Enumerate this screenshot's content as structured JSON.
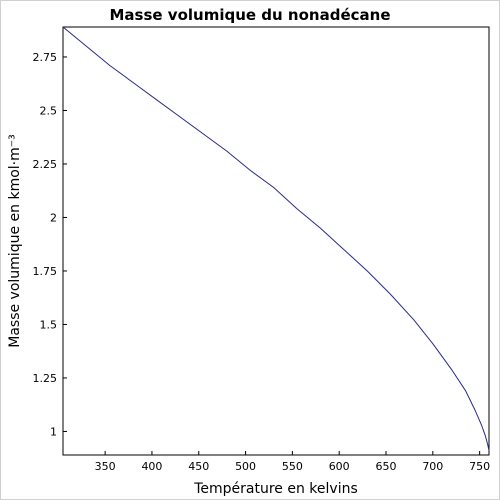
{
  "chart_data": {
    "type": "line",
    "title": "Masse volumique du nonadécane",
    "xlabel": "Température en kelvins",
    "ylabel": "Masse volumique en kmol·m⁻³",
    "xlim": [
      305,
      760
    ],
    "ylim": [
      0.89,
      2.89
    ],
    "xticks": [
      350,
      400,
      450,
      500,
      550,
      600,
      650,
      700,
      750
    ],
    "xtick_labels": [
      "350",
      "400",
      "450",
      "500",
      "550",
      "600",
      "650",
      "700",
      "750"
    ],
    "yticks": [
      1,
      1.25,
      1.5,
      1.75,
      2,
      2.25,
      2.5,
      2.75
    ],
    "ytick_labels": [
      "1",
      "1.25",
      "1.5",
      "1.75",
      "2",
      "2.25",
      "2.5",
      "2.75"
    ],
    "grid": false,
    "series": [
      {
        "color": "#2a2a8c",
        "x": [
          305,
          330,
          355,
          380,
          405,
          430,
          455,
          480,
          505,
          530,
          555,
          580,
          605,
          630,
          655,
          680,
          700,
          720,
          735,
          745,
          752,
          756,
          758,
          759,
          760
        ],
        "y": [
          2.89,
          2.8,
          2.71,
          2.63,
          2.55,
          2.47,
          2.39,
          2.31,
          2.22,
          2.14,
          2.04,
          1.95,
          1.85,
          1.75,
          1.64,
          1.52,
          1.41,
          1.29,
          1.19,
          1.1,
          1.03,
          0.98,
          0.95,
          0.93,
          0.91
        ]
      }
    ]
  }
}
